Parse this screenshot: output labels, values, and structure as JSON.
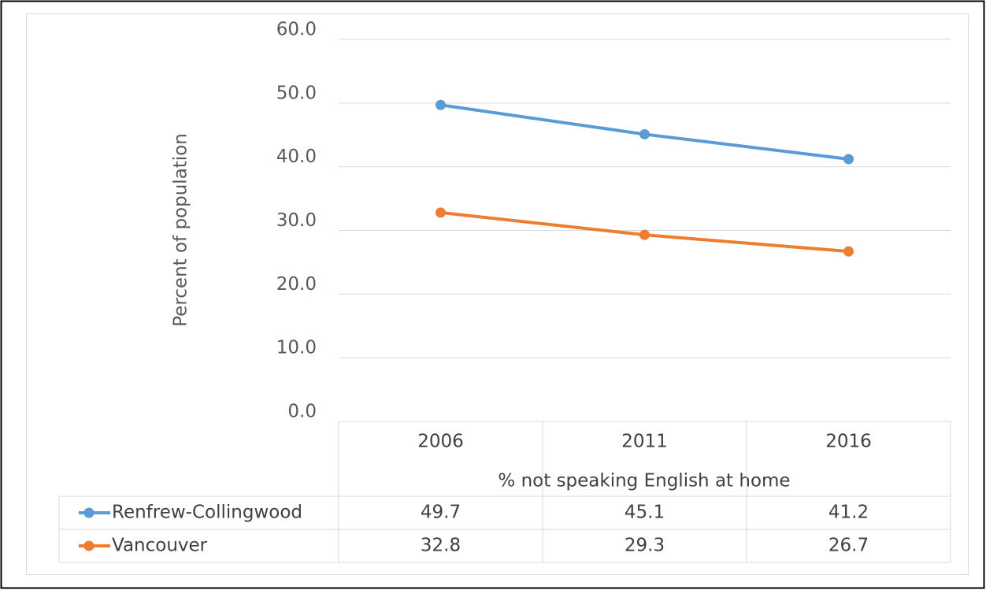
{
  "chart_data": {
    "type": "line",
    "y_label": "Percent of population",
    "x_label": "% not speaking English at home",
    "categories": [
      "2006",
      "2011",
      "2016"
    ],
    "series": [
      {
        "name": "Renfrew-Collingwood",
        "color": "#5b9bd5",
        "values": [
          49.7,
          45.1,
          41.2
        ]
      },
      {
        "name": "Vancouver",
        "color": "#ed7d31",
        "values": [
          32.8,
          29.3,
          26.7
        ]
      }
    ],
    "ylim": [
      0,
      60
    ],
    "yticks": [
      {
        "value": 0,
        "label": "0.0"
      },
      {
        "value": 10,
        "label": "10.0"
      },
      {
        "value": 20,
        "label": "20.0"
      },
      {
        "value": 30,
        "label": "30.0"
      },
      {
        "value": 40,
        "label": "40.0"
      },
      {
        "value": 50,
        "label": "50.0"
      },
      {
        "value": 60,
        "label": "60.0"
      }
    ],
    "grid": true,
    "data_table": true
  }
}
